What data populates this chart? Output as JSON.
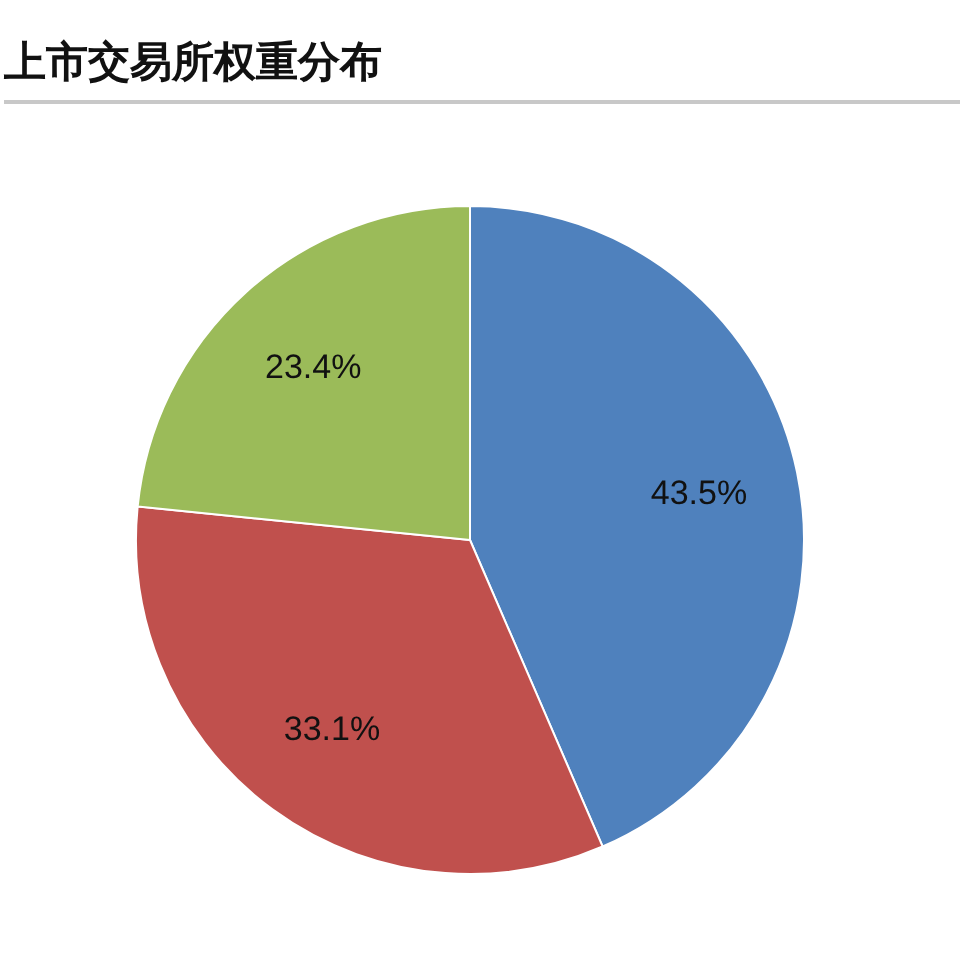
{
  "chart_data": {
    "type": "pie",
    "title": "上市交易所权重分布",
    "categories": [
      null,
      null,
      null
    ],
    "values": [
      43.5,
      33.1,
      23.4
    ],
    "colors": [
      "#4f81bd",
      "#c0504d",
      "#9bbb59"
    ],
    "value_labels": [
      "43.5%",
      "33.1%",
      "23.4%"
    ]
  }
}
